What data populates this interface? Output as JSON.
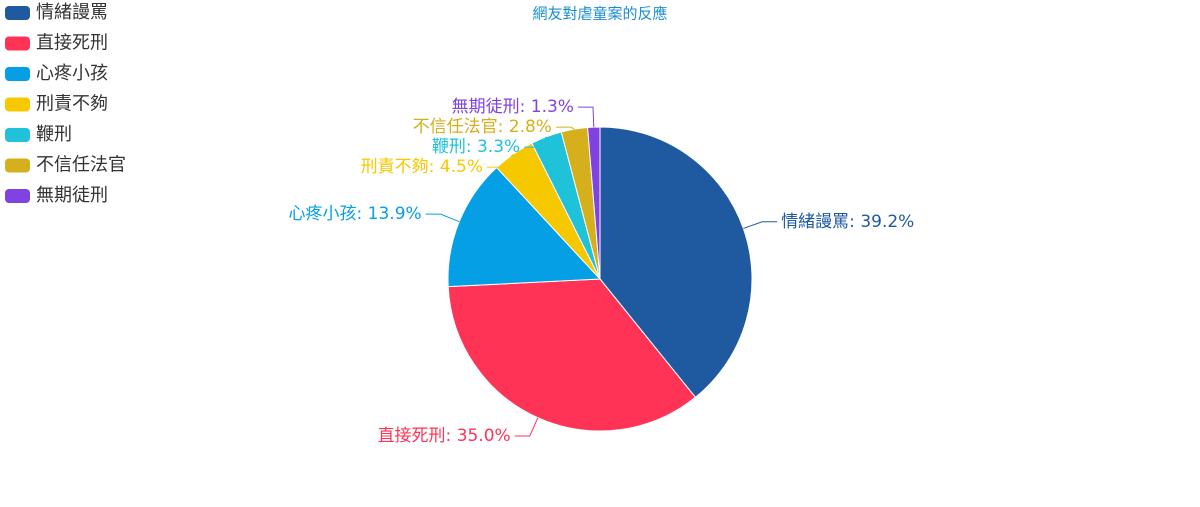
{
  "chart_data": {
    "type": "pie",
    "title": "網友對虐童案的反應",
    "categories": [
      "情緒謾罵",
      "直接死刑",
      "心疼小孩",
      "刑責不夠",
      "鞭刑",
      "不信任法官",
      "無期徒刑"
    ],
    "values": [
      39.2,
      35.0,
      13.9,
      4.5,
      3.3,
      2.8,
      1.3
    ],
    "value_labels": [
      "情緒謾罵: 39.2%",
      "直接死刑: 35.0%",
      "心疼小孩: 13.9%",
      "刑責不夠: 4.5%",
      "鞭刑: 3.3%",
      "不信任法官: 2.8%",
      "無期徒刑: 1.3%"
    ],
    "colors": [
      "#1f5aa0",
      "#ff3355",
      "#049fe5",
      "#f6c800",
      "#1fc2d8",
      "#d5af1c",
      "#8042e0"
    ],
    "legend": "top-left"
  }
}
